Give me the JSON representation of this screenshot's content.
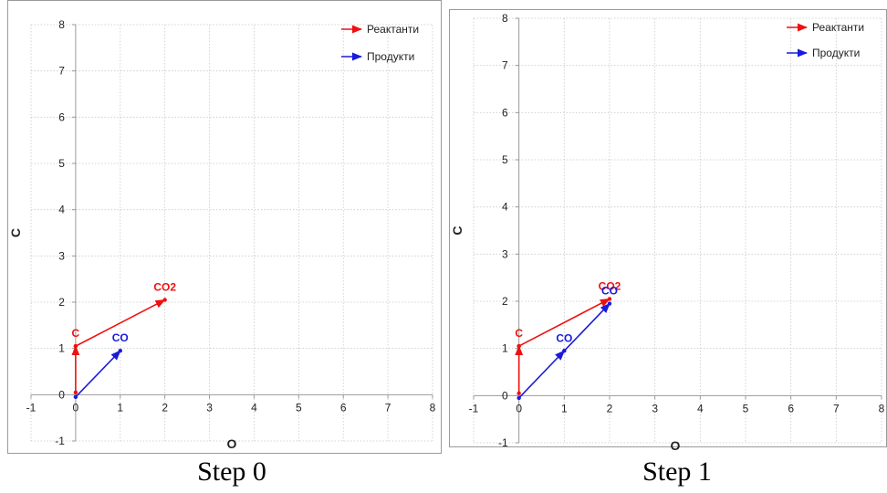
{
  "chart_data": [
    {
      "type": "line",
      "caption": "Step 0",
      "xlabel": "O",
      "ylabel": "C",
      "xlim": [
        -1,
        8
      ],
      "ylim": [
        -1,
        8
      ],
      "xticks": [
        -1,
        0,
        1,
        2,
        3,
        4,
        5,
        6,
        7,
        8
      ],
      "yticks": [
        -1,
        0,
        1,
        2,
        3,
        4,
        5,
        6,
        7,
        8
      ],
      "grid": true,
      "legend": "top-right",
      "series": [
        {
          "name": "Реактанти",
          "color": "#ee1111",
          "segments": [
            [
              [
                0,
                0.05
              ],
              [
                0,
                1.05
              ]
            ],
            [
              [
                0,
                1.05
              ],
              [
                2,
                2.05
              ]
            ]
          ]
        },
        {
          "name": "Продукти",
          "color": "#1a1adc",
          "segments": [
            [
              [
                0,
                -0.05
              ],
              [
                1,
                0.95
              ]
            ]
          ]
        }
      ],
      "annotations": [
        {
          "text": "C",
          "x": 0,
          "y": 1.05,
          "color": "#ee1111"
        },
        {
          "text": "CO2",
          "x": 2,
          "y": 2.05,
          "color": "#ee1111"
        },
        {
          "text": "CO",
          "x": 1,
          "y": 0.95,
          "color": "#1a1adc"
        }
      ]
    },
    {
      "type": "line",
      "caption": "Step 1",
      "xlabel": "O",
      "ylabel": "C",
      "xlim": [
        -1,
        8
      ],
      "ylim": [
        -1,
        8
      ],
      "xticks": [
        -1,
        0,
        1,
        2,
        3,
        4,
        5,
        6,
        7,
        8
      ],
      "yticks": [
        -1,
        0,
        1,
        2,
        3,
        4,
        5,
        6,
        7,
        8
      ],
      "grid": true,
      "legend": "top-right",
      "series": [
        {
          "name": "Реактанти",
          "color": "#ee1111",
          "segments": [
            [
              [
                0,
                0.05
              ],
              [
                0,
                1.05
              ]
            ],
            [
              [
                0,
                1.05
              ],
              [
                2,
                2.05
              ]
            ]
          ]
        },
        {
          "name": "Продукти",
          "color": "#1a1adc",
          "segments": [
            [
              [
                0,
                -0.05
              ],
              [
                1,
                0.95
              ]
            ],
            [
              [
                1,
                0.95
              ],
              [
                2,
                1.95
              ]
            ]
          ]
        }
      ],
      "annotations": [
        {
          "text": "C",
          "x": 0,
          "y": 1.05,
          "color": "#ee1111"
        },
        {
          "text": "CO2",
          "x": 2,
          "y": 2.05,
          "color": "#ee1111"
        },
        {
          "text": "CO",
          "x": 1,
          "y": 0.95,
          "color": "#1a1adc"
        },
        {
          "text": "CO",
          "x": 2,
          "y": 1.95,
          "color": "#1a1adc"
        }
      ]
    }
  ]
}
